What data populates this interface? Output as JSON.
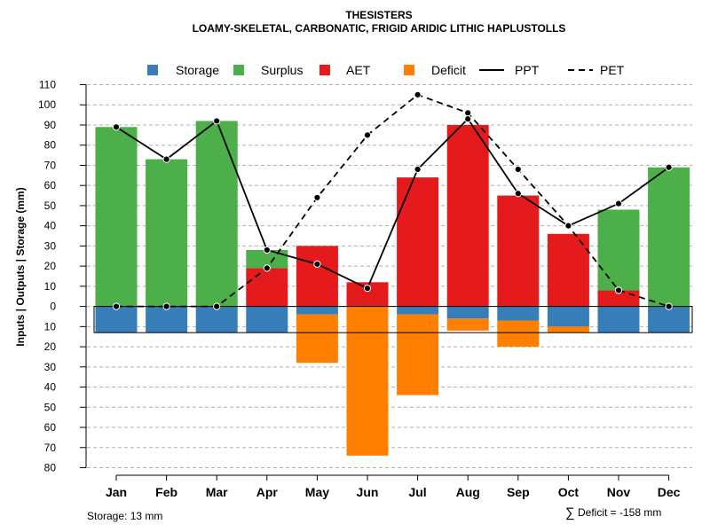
{
  "chart_data": {
    "type": "bar",
    "title": "THESISTERS",
    "subtitle": "LOAMY-SKELETAL, CARBONATIC, FRIGID ARIDIC LITHIC HAPLUSTOLLS",
    "ylabel": "Inputs | Outputs | Storage    (mm)",
    "xlabel": "",
    "ylim": [
      -80,
      110
    ],
    "yticks": [
      110,
      100,
      90,
      80,
      70,
      60,
      50,
      40,
      30,
      20,
      10,
      0,
      -10,
      -20,
      -30,
      -40,
      -50,
      -60,
      -70,
      -80
    ],
    "ytick_labels": [
      "110",
      "100",
      "90",
      "80",
      "70",
      "60",
      "50",
      "40",
      "30",
      "20",
      "10",
      "0",
      "10",
      "20",
      "30",
      "40",
      "50",
      "60",
      "70",
      "80"
    ],
    "grid": true,
    "legend_position": "top",
    "categories": [
      "Jan",
      "Feb",
      "Mar",
      "Apr",
      "May",
      "Jun",
      "Jul",
      "Aug",
      "Sep",
      "Oct",
      "Nov",
      "Dec"
    ],
    "legend": [
      {
        "label": "Storage",
        "kind": "box",
        "color": "#377EB8"
      },
      {
        "label": "Surplus",
        "kind": "box",
        "color": "#4DAF4A"
      },
      {
        "label": "AET",
        "kind": "box",
        "color": "#E41A1C"
      },
      {
        "label": "Deficit",
        "kind": "box",
        "color": "#FF7F00"
      },
      {
        "label": "PPT",
        "kind": "solid-line",
        "color": "#000000"
      },
      {
        "label": "PET",
        "kind": "dashed-line",
        "color": "#000000"
      }
    ],
    "series": [
      {
        "name": "AET",
        "color": "#E41A1C",
        "values": [
          0,
          0,
          0,
          19,
          30,
          12,
          64,
          90,
          55,
          36,
          8,
          0
        ]
      },
      {
        "name": "Surplus",
        "color": "#4DAF4A",
        "values": [
          89,
          73,
          92,
          9,
          0,
          0,
          0,
          0,
          0,
          0,
          40,
          69
        ]
      },
      {
        "name": "Storage",
        "color": "#377EB8",
        "values": [
          13,
          13,
          13,
          13,
          4,
          0,
          4,
          6,
          7,
          10,
          13,
          13
        ]
      },
      {
        "name": "Deficit",
        "color": "#FF7F00",
        "values": [
          0,
          0,
          0,
          0,
          24,
          74,
          40,
          6,
          13,
          3,
          0,
          0
        ]
      },
      {
        "name": "PPT",
        "color": "#000000",
        "style": "solid",
        "values": [
          89,
          73,
          92,
          28,
          21,
          9,
          68,
          93,
          56,
          40,
          51,
          69
        ]
      },
      {
        "name": "PET",
        "color": "#000000",
        "style": "dashed",
        "values": [
          0,
          0,
          0,
          19,
          54,
          85,
          105,
          96,
          68,
          40,
          8,
          0
        ]
      }
    ],
    "storage_capacity": 13,
    "annotations": {
      "storage_note": "Storage: 13 mm",
      "deficit_symbol": "∑",
      "deficit_note": "Deficit = -158 mm"
    }
  }
}
